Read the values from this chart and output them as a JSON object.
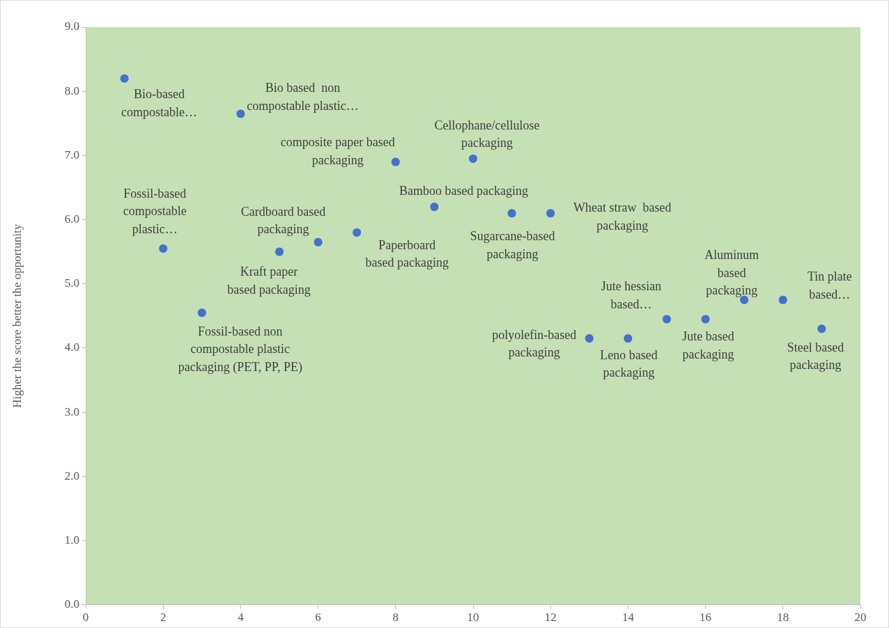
{
  "chart_data": {
    "type": "scatter",
    "ylabel": "Higher the score better the opportunity",
    "x": [
      1,
      2,
      3,
      4,
      5,
      6,
      7,
      8,
      9,
      10,
      11,
      12,
      13,
      14,
      15,
      16,
      17,
      18,
      19
    ],
    "series": [
      {
        "color": "#4472c4",
        "values": [
          8.2,
          5.55,
          4.55,
          7.65,
          5.5,
          5.65,
          5.8,
          6.9,
          6.2,
          6.95,
          6.1,
          6.1,
          4.15,
          4.15,
          4.45,
          4.45,
          4.75,
          4.75,
          4.3
        ]
      }
    ],
    "xlim": [
      0,
      20
    ],
    "xticks": [
      0,
      2,
      4,
      6,
      8,
      10,
      12,
      14,
      16,
      18,
      20
    ],
    "ylim": [
      0,
      9
    ],
    "yticks": [
      {
        "value": 0,
        "label": "0.0"
      },
      {
        "value": 1,
        "label": "1.0"
      },
      {
        "value": 2,
        "label": "2.0"
      },
      {
        "value": 3,
        "label": "3.0"
      },
      {
        "value": 4,
        "label": "4.0"
      },
      {
        "value": 5,
        "label": "5.0"
      },
      {
        "value": 6,
        "label": "6.0"
      },
      {
        "value": 7,
        "label": "7.0"
      },
      {
        "value": 8,
        "label": "8.0"
      },
      {
        "value": 9,
        "label": "9.0"
      }
    ],
    "grid": false,
    "legend": false,
    "marker": "circle",
    "annotations": [
      {
        "text": "Bio-based compostable…",
        "x": 1,
        "y": 8.2
      },
      {
        "text": "Fossil-based compostable plastic…",
        "x": 2,
        "y": 5.55
      },
      {
        "text": "Fossil-based non compostable plastic packaging (PET, PP, PE)",
        "x": 3,
        "y": 4.55
      },
      {
        "text": "Bio based  non compostable plastic…",
        "x": 4,
        "y": 7.65
      },
      {
        "text": "Kraft paper based packaging",
        "x": 5,
        "y": 5.5
      },
      {
        "text": "Cardboard based packaging",
        "x": 6,
        "y": 5.65
      },
      {
        "text": "Paperboard based packaging",
        "x": 7,
        "y": 5.8
      },
      {
        "text": "composite paper based packaging",
        "x": 8,
        "y": 6.9
      },
      {
        "text": "Bamboo based packaging",
        "x": 9,
        "y": 6.2
      },
      {
        "text": "Cellophane/cellulose packaging",
        "x": 10,
        "y": 6.95
      },
      {
        "text": "Sugarcane-based packaging",
        "x": 11,
        "y": 6.1
      },
      {
        "text": "Wheat straw  based packaging",
        "x": 12,
        "y": 6.1
      },
      {
        "text": "polyolefin-based packaging",
        "x": 13,
        "y": 4.15
      },
      {
        "text": "Leno based packaging",
        "x": 14,
        "y": 4.15
      },
      {
        "text": "Jute hessian based…",
        "x": 15,
        "y": 4.45
      },
      {
        "text": "Jute based packaging",
        "x": 16,
        "y": 4.45
      },
      {
        "text": "Aluminum based packaging",
        "x": 17,
        "y": 4.75
      },
      {
        "text": "Tin plate based…",
        "x": 18,
        "y": 4.75
      },
      {
        "text": "Steel based packaging",
        "x": 19,
        "y": 4.3
      }
    ]
  }
}
